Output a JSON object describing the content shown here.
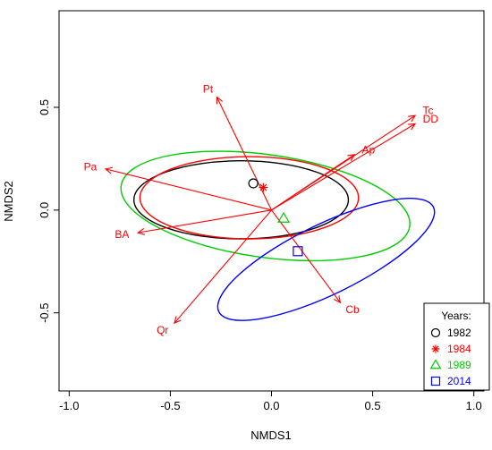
{
  "chart_data": {
    "type": "scatter",
    "xlabel": "NMDS1",
    "ylabel": "NMDS2",
    "xlim": [
      -1.05,
      1.05
    ],
    "ylim": [
      -0.88,
      0.97
    ],
    "x_ticks": [
      -1.0,
      -0.5,
      0.0,
      0.5,
      1.0
    ],
    "x_tick_labels": [
      "-1.0",
      "-0.5",
      "0.0",
      "0.5",
      "1.0"
    ],
    "y_ticks": [
      -0.5,
      0.0,
      0.5
    ],
    "y_tick_labels": [
      "-0.5",
      "0.0",
      "0.5"
    ],
    "grid": false,
    "legend": {
      "title": "Years:",
      "position": "bottom-right",
      "entries": [
        {
          "label": "1982",
          "color": "#000000",
          "symbol": "circle"
        },
        {
          "label": "1984",
          "color": "#ff0000",
          "symbol": "asterisk"
        },
        {
          "label": "1989",
          "color": "#00cc00",
          "symbol": "triangle"
        },
        {
          "label": "2014",
          "color": "#0000ff",
          "symbol": "square"
        }
      ]
    },
    "centroids": [
      {
        "year": "1982",
        "x": -0.09,
        "y": 0.13,
        "color": "#000000",
        "symbol": "circle"
      },
      {
        "year": "1984",
        "x": -0.04,
        "y": 0.11,
        "color": "#ff0000",
        "symbol": "asterisk"
      },
      {
        "year": "1989",
        "x": 0.06,
        "y": -0.04,
        "color": "#00cc00",
        "symbol": "triangle"
      },
      {
        "year": "2014",
        "x": 0.13,
        "y": -0.2,
        "color": "#0000ff",
        "symbol": "square"
      }
    ],
    "ellipses": [
      {
        "year": "1982",
        "color": "#000000",
        "cx": -0.15,
        "cy": 0.05,
        "rx": 0.53,
        "ry": 0.19,
        "angle": 0
      },
      {
        "year": "1984",
        "color": "#ff0000",
        "cx": -0.11,
        "cy": 0.06,
        "rx": 0.54,
        "ry": 0.2,
        "angle": 0
      },
      {
        "year": "1989",
        "color": "#00cc00",
        "cx": -0.03,
        "cy": 0.02,
        "rx": 0.72,
        "ry": 0.25,
        "angle": -8
      },
      {
        "year": "2014",
        "color": "#0000ff",
        "cx": 0.27,
        "cy": -0.24,
        "rx": 0.59,
        "ry": 0.17,
        "angle": 26
      }
    ],
    "vectors": [
      {
        "label": "Pt",
        "x": -0.27,
        "y": 0.55
      },
      {
        "label": "Pa",
        "x": -0.82,
        "y": 0.2
      },
      {
        "label": "BA",
        "x": -0.66,
        "y": -0.11
      },
      {
        "label": "Qr",
        "x": -0.48,
        "y": -0.55
      },
      {
        "label": "Cb",
        "x": 0.34,
        "y": -0.45
      },
      {
        "label": "Ap",
        "x": 0.41,
        "y": 0.27
      },
      {
        "label": "Tc",
        "x": 0.71,
        "y": 0.46
      },
      {
        "label": "DD",
        "x": 0.71,
        "y": 0.42
      }
    ],
    "vector_color": "#ff0000"
  }
}
